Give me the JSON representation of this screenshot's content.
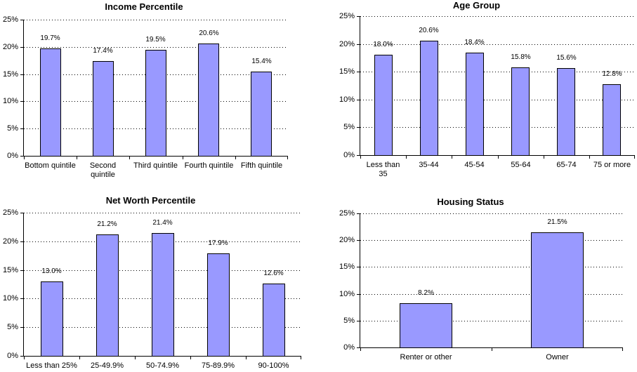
{
  "page": {
    "background": "#ffffff"
  },
  "charts_common": {
    "bar_fill": "#9999FF",
    "bar_border": "#000000",
    "axis_color": "#000000",
    "grid_style": "dotted",
    "ylim": [
      0,
      25
    ],
    "ytick_step": 5,
    "ytick_labels": [
      "0%",
      "5%",
      "10%",
      "15%",
      "20%",
      "25%"
    ]
  },
  "chart_data": [
    {
      "type": "bar",
      "title": "Income Percentile",
      "categories": [
        "Bottom quintile",
        "Second quintile",
        "Third quintile",
        "Fourth quintile",
        "Fifth quintile"
      ],
      "category_lines": [
        [
          "Bottom quintile"
        ],
        [
          "Second",
          "quintile"
        ],
        [
          "Third quintile"
        ],
        [
          "Fourth quintile"
        ],
        [
          "Fifth quintile"
        ]
      ],
      "values": [
        19.7,
        17.4,
        19.5,
        20.6,
        15.4
      ],
      "labels": [
        "19.7%",
        "17.4%",
        "19.5%",
        "20.6%",
        "15.4%"
      ],
      "xlabel": "",
      "ylabel": "",
      "ylim": [
        0,
        25
      ],
      "grid": true,
      "legend": "none"
    },
    {
      "type": "bar",
      "title": "Age Group",
      "categories": [
        "Less than 35",
        "35-44",
        "45-54",
        "55-64",
        "65-74",
        "75 or more"
      ],
      "category_lines": [
        [
          "Less than",
          "35"
        ],
        [
          "35-44"
        ],
        [
          "45-54"
        ],
        [
          "55-64"
        ],
        [
          "65-74"
        ],
        [
          "75 or more"
        ]
      ],
      "values": [
        18.0,
        20.6,
        18.4,
        15.8,
        15.6,
        12.8
      ],
      "labels": [
        "18.0%",
        "20.6%",
        "18.4%",
        "15.8%",
        "15.6%",
        "12.8%"
      ],
      "xlabel": "",
      "ylabel": "",
      "ylim": [
        0,
        25
      ],
      "grid": true,
      "legend": "none"
    },
    {
      "type": "bar",
      "title": "Net Worth Percentile",
      "categories": [
        "Less than 25%",
        "25-49.9%",
        "50-74.9%",
        "75-89.9%",
        "90-100%"
      ],
      "category_lines": [
        [
          "Less than 25%"
        ],
        [
          "25-49.9%"
        ],
        [
          "50-74.9%"
        ],
        [
          "75-89.9%"
        ],
        [
          "90-100%"
        ]
      ],
      "values": [
        13.0,
        21.2,
        21.4,
        17.9,
        12.6
      ],
      "labels": [
        "13.0%",
        "21.2%",
        "21.4%",
        "17.9%",
        "12.6%"
      ],
      "xlabel": "",
      "ylabel": "",
      "ylim": [
        0,
        25
      ],
      "grid": true,
      "legend": "none"
    },
    {
      "type": "bar",
      "title": "Housing Status",
      "categories": [
        "Renter or other",
        "Owner"
      ],
      "category_lines": [
        [
          "Renter or other"
        ],
        [
          "Owner"
        ]
      ],
      "values": [
        8.2,
        21.5
      ],
      "labels": [
        "8.2%",
        "21.5%"
      ],
      "xlabel": "",
      "ylabel": "",
      "ylim": [
        0,
        25
      ],
      "grid": true,
      "legend": "none"
    }
  ]
}
